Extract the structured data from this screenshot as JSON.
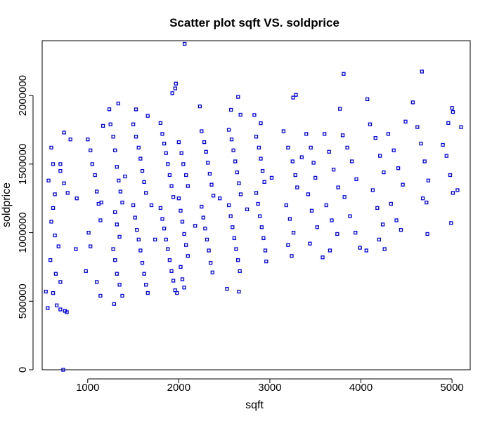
{
  "chart_data": {
    "type": "scatter",
    "title": "Scatter plot sqft VS. soldprice",
    "xlabel": "sqft",
    "ylabel": "soldprice",
    "xlim": [
      500,
      5200
    ],
    "ylim": [
      0,
      2400000
    ],
    "xticks": [
      1000,
      2000,
      3000,
      4000,
      5000
    ],
    "yticks": [
      0,
      500000,
      1000000,
      1500000,
      2000000
    ],
    "xtick_labels": [
      "1000",
      "2000",
      "3000",
      "4000",
      "5000"
    ],
    "ytick_labels": [
      "0",
      "500000",
      "1000000",
      "1500000",
      "2000000"
    ],
    "grid": false,
    "marker_color": "#0000ff",
    "points": [
      [
        731,
        0
      ],
      [
        2064,
        2377000
      ],
      [
        1969,
        2087000
      ],
      [
        1961,
        2052000
      ],
      [
        1929,
        2017000
      ],
      [
        1336,
        1942000
      ],
      [
        3286,
        2005000
      ],
      [
        3256,
        1985000
      ],
      [
        2652,
        1990000
      ],
      [
        4070,
        1973000
      ],
      [
        3810,
        2158000
      ],
      [
        4670,
        2175000
      ],
      [
        740,
        1730000
      ],
      [
        1168,
        1779000
      ],
      [
        1237,
        1900000
      ],
      [
        1530,
        1899000
      ],
      [
        1659,
        1852000
      ],
      [
        2232,
        1921000
      ],
      [
        2574,
        1896000
      ],
      [
        2678,
        1860000
      ],
      [
        2830,
        1858000
      ],
      [
        2900,
        1798000
      ],
      [
        3770,
        1903000
      ],
      [
        4490,
        1810000
      ],
      [
        4570,
        1950000
      ],
      [
        5000,
        1910000
      ],
      [
        5010,
        1880000
      ],
      [
        4960,
        1800000
      ],
      [
        600,
        1620000
      ],
      [
        620,
        1500000
      ],
      [
        570,
        1380000
      ],
      [
        640,
        1280000
      ],
      [
        700,
        1450000
      ],
      [
        740,
        1360000
      ],
      [
        780,
        1290000
      ],
      [
        810,
        1680000
      ],
      [
        620,
        1180000
      ],
      [
        600,
        1080000
      ],
      [
        640,
        980000
      ],
      [
        680,
        900000
      ],
      [
        590,
        800000
      ],
      [
        650,
        700000
      ],
      [
        700,
        640000
      ],
      [
        620,
        560000
      ],
      [
        660,
        470000
      ],
      [
        700,
        440000
      ],
      [
        750,
        430000
      ],
      [
        770,
        420000
      ],
      [
        540,
        570000
      ],
      [
        560,
        450000
      ],
      [
        1000,
        1680000
      ],
      [
        1030,
        1600000
      ],
      [
        1050,
        1500000
      ],
      [
        1080,
        1420000
      ],
      [
        1100,
        1300000
      ],
      [
        1120,
        1210000
      ],
      [
        1140,
        1090000
      ],
      [
        1010,
        1000000
      ],
      [
        1030,
        900000
      ],
      [
        980,
        720000
      ],
      [
        1100,
        640000
      ],
      [
        1140,
        540000
      ],
      [
        1250,
        1790000
      ],
      [
        1280,
        1700000
      ],
      [
        1300,
        1600000
      ],
      [
        1320,
        1480000
      ],
      [
        1340,
        1380000
      ],
      [
        1360,
        1300000
      ],
      [
        1380,
        1220000
      ],
      [
        1300,
        1150000
      ],
      [
        1320,
        1060000
      ],
      [
        1350,
        970000
      ],
      [
        1280,
        880000
      ],
      [
        1300,
        800000
      ],
      [
        1320,
        700000
      ],
      [
        1350,
        620000
      ],
      [
        1380,
        540000
      ],
      [
        1290,
        480000
      ],
      [
        1500,
        1790000
      ],
      [
        1530,
        1700000
      ],
      [
        1560,
        1620000
      ],
      [
        1580,
        1540000
      ],
      [
        1600,
        1450000
      ],
      [
        1620,
        1370000
      ],
      [
        1640,
        1290000
      ],
      [
        1500,
        1200000
      ],
      [
        1520,
        1110000
      ],
      [
        1540,
        1020000
      ],
      [
        1560,
        950000
      ],
      [
        1580,
        870000
      ],
      [
        1600,
        780000
      ],
      [
        1620,
        700000
      ],
      [
        1640,
        620000
      ],
      [
        1660,
        560000
      ],
      [
        1800,
        1800000
      ],
      [
        1820,
        1720000
      ],
      [
        1840,
        1650000
      ],
      [
        1860,
        1580000
      ],
      [
        1880,
        1500000
      ],
      [
        1900,
        1420000
      ],
      [
        1920,
        1340000
      ],
      [
        1940,
        1260000
      ],
      [
        1800,
        1180000
      ],
      [
        1820,
        1100000
      ],
      [
        1840,
        1030000
      ],
      [
        1860,
        950000
      ],
      [
        1880,
        880000
      ],
      [
        1900,
        800000
      ],
      [
        1920,
        720000
      ],
      [
        1940,
        650000
      ],
      [
        1960,
        580000
      ],
      [
        1980,
        560000
      ],
      [
        2000,
        1660000
      ],
      [
        2030,
        1580000
      ],
      [
        2050,
        1500000
      ],
      [
        2080,
        1420000
      ],
      [
        2100,
        1340000
      ],
      [
        2000,
        1250000
      ],
      [
        2020,
        1160000
      ],
      [
        2040,
        1080000
      ],
      [
        2060,
        990000
      ],
      [
        2080,
        910000
      ],
      [
        2100,
        830000
      ],
      [
        2020,
        750000
      ],
      [
        2040,
        660000
      ],
      [
        2060,
        600000
      ],
      [
        2250,
        1740000
      ],
      [
        2280,
        1660000
      ],
      [
        2300,
        1590000
      ],
      [
        2320,
        1510000
      ],
      [
        2340,
        1430000
      ],
      [
        2360,
        1350000
      ],
      [
        2380,
        1270000
      ],
      [
        2250,
        1190000
      ],
      [
        2270,
        1110000
      ],
      [
        2290,
        1030000
      ],
      [
        2310,
        950000
      ],
      [
        2330,
        870000
      ],
      [
        2350,
        780000
      ],
      [
        2370,
        710000
      ],
      [
        2550,
        1750000
      ],
      [
        2580,
        1680000
      ],
      [
        2600,
        1600000
      ],
      [
        2620,
        1520000
      ],
      [
        2640,
        1440000
      ],
      [
        2660,
        1360000
      ],
      [
        2680,
        1280000
      ],
      [
        2550,
        1200000
      ],
      [
        2570,
        1120000
      ],
      [
        2590,
        1040000
      ],
      [
        2610,
        960000
      ],
      [
        2630,
        880000
      ],
      [
        2650,
        800000
      ],
      [
        2670,
        720000
      ],
      [
        2530,
        590000
      ],
      [
        2660,
        570000
      ],
      [
        2850,
        1700000
      ],
      [
        2880,
        1620000
      ],
      [
        2900,
        1540000
      ],
      [
        2920,
        1450000
      ],
      [
        2940,
        1370000
      ],
      [
        2850,
        1290000
      ],
      [
        2870,
        1210000
      ],
      [
        2890,
        1120000
      ],
      [
        2910,
        1040000
      ],
      [
        2930,
        960000
      ],
      [
        2950,
        870000
      ],
      [
        2960,
        790000
      ],
      [
        3150,
        1740000
      ],
      [
        3200,
        1620000
      ],
      [
        3250,
        1520000
      ],
      [
        3280,
        1420000
      ],
      [
        3300,
        1330000
      ],
      [
        3180,
        1200000
      ],
      [
        3220,
        1100000
      ],
      [
        3260,
        1000000
      ],
      [
        3200,
        910000
      ],
      [
        3240,
        830000
      ],
      [
        3400,
        1720000
      ],
      [
        3450,
        1620000
      ],
      [
        3480,
        1510000
      ],
      [
        3500,
        1400000
      ],
      [
        3420,
        1280000
      ],
      [
        3460,
        1160000
      ],
      [
        3520,
        1040000
      ],
      [
        3440,
        920000
      ],
      [
        3600,
        1720000
      ],
      [
        3650,
        1590000
      ],
      [
        3700,
        1460000
      ],
      [
        3750,
        1330000
      ],
      [
        3620,
        1200000
      ],
      [
        3680,
        1090000
      ],
      [
        3740,
        990000
      ],
      [
        3660,
        870000
      ],
      [
        3580,
        820000
      ],
      [
        3800,
        1710000
      ],
      [
        3850,
        1620000
      ],
      [
        3900,
        1520000
      ],
      [
        3950,
        1390000
      ],
      [
        3820,
        1260000
      ],
      [
        3880,
        1120000
      ],
      [
        3940,
        1000000
      ],
      [
        3990,
        890000
      ],
      [
        4060,
        870000
      ],
      [
        4100,
        1790000
      ],
      [
        4160,
        1690000
      ],
      [
        4210,
        1560000
      ],
      [
        4250,
        1440000
      ],
      [
        4130,
        1310000
      ],
      [
        4180,
        1180000
      ],
      [
        4240,
        1060000
      ],
      [
        4200,
        950000
      ],
      [
        4260,
        880000
      ],
      [
        4300,
        1720000
      ],
      [
        4360,
        1600000
      ],
      [
        4410,
        1470000
      ],
      [
        4460,
        1350000
      ],
      [
        4330,
        1210000
      ],
      [
        4390,
        1090000
      ],
      [
        4440,
        1020000
      ],
      [
        4620,
        1770000
      ],
      [
        4660,
        1650000
      ],
      [
        4700,
        1520000
      ],
      [
        4740,
        1380000
      ],
      [
        4680,
        1250000
      ],
      [
        4720,
        1220000
      ],
      [
        4730,
        990000
      ],
      [
        4900,
        1640000
      ],
      [
        4940,
        1560000
      ],
      [
        4980,
        1420000
      ],
      [
        5010,
        1290000
      ],
      [
        4990,
        1070000
      ],
      [
        5060,
        1310000
      ],
      [
        5100,
        1770000
      ],
      [
        700,
        1500000
      ],
      [
        880,
        1250000
      ],
      [
        870,
        880000
      ],
      [
        1150,
        1220000
      ],
      [
        1410,
        1410000
      ],
      [
        1700,
        1200000
      ],
      [
        1740,
        950000
      ],
      [
        2180,
        1050000
      ],
      [
        2450,
        1250000
      ],
      [
        2750,
        1170000
      ],
      [
        3020,
        1400000
      ],
      [
        3350,
        1550000
      ]
    ]
  }
}
